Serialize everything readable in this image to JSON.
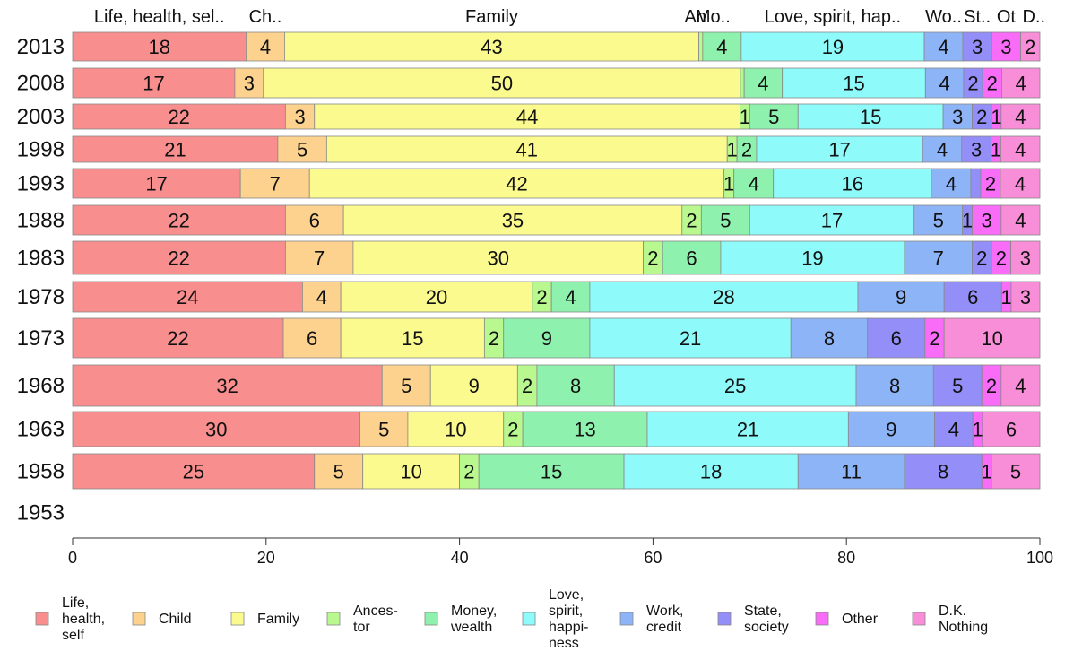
{
  "chart_data": {
    "type": "bar",
    "orientation": "horizontal",
    "stacked": true,
    "xlim": [
      0,
      100
    ],
    "x_ticks": [
      0,
      20,
      40,
      60,
      80,
      100
    ],
    "grid": false,
    "legend_position": "bottom",
    "top_labels": [
      "Life, health, sel..",
      "Ch..",
      "Family",
      "An",
      "Mo..",
      "Love, spirit, hap..",
      "Wo..",
      "St..",
      "Ot",
      "D.."
    ],
    "series": [
      {
        "name": "Life, health, self",
        "legend_lines": [
          "Life,",
          "health,",
          "self"
        ],
        "color": "#f88e8e"
      },
      {
        "name": "Child",
        "legend_lines": [
          "Child"
        ],
        "color": "#fcd28e"
      },
      {
        "name": "Family",
        "legend_lines": [
          "Family"
        ],
        "color": "#fafa8e"
      },
      {
        "name": "Ancestor",
        "legend_lines": [
          "Ances-",
          "tor"
        ],
        "color": "#b8f88e"
      },
      {
        "name": "Money, wealth",
        "legend_lines": [
          "Money,",
          "wealth"
        ],
        "color": "#8ef2ae"
      },
      {
        "name": "Love, spirit, happiness",
        "legend_lines": [
          "Love,",
          "spirit,",
          "happi-",
          "ness"
        ],
        "color": "#8efafa"
      },
      {
        "name": "Work, credit",
        "legend_lines": [
          "Work,",
          "credit"
        ],
        "color": "#8eb4f8"
      },
      {
        "name": "State, society",
        "legend_lines": [
          "State,",
          "society"
        ],
        "color": "#948ef8"
      },
      {
        "name": "Other",
        "legend_lines": [
          "Other"
        ],
        "color": "#f86cf8"
      },
      {
        "name": "D.K. Nothing",
        "legend_lines": [
          "D.K.",
          "Nothing"
        ],
        "color": "#f88ed8"
      }
    ],
    "rows": [
      {
        "year": "2013",
        "values": [
          18,
          4,
          43,
          0.4,
          4,
          19,
          4,
          3,
          3,
          2
        ],
        "labels": [
          "18",
          "4",
          "43",
          "",
          "4",
          "19",
          "4",
          "3",
          "3",
          "2"
        ]
      },
      {
        "year": "2008",
        "values": [
          17,
          3,
          50,
          0.4,
          4,
          15,
          4,
          2,
          2,
          4
        ],
        "labels": [
          "17",
          "3",
          "50",
          "",
          "4",
          "15",
          "4",
          "2",
          "2",
          "4"
        ]
      },
      {
        "year": "2003",
        "values": [
          22,
          3,
          44,
          1,
          5,
          15,
          3,
          2,
          1,
          4
        ],
        "labels": [
          "22",
          "3",
          "44",
          "1",
          "5",
          "15",
          "3",
          "2",
          "1",
          "4"
        ]
      },
      {
        "year": "1998",
        "values": [
          21,
          5,
          41,
          1,
          2,
          17,
          4,
          3,
          1,
          4
        ],
        "labels": [
          "21",
          "5",
          "41",
          "1",
          "2",
          "17",
          "4",
          "3",
          "1",
          "4"
        ]
      },
      {
        "year": "1993",
        "values": [
          17,
          7,
          42,
          1,
          4,
          16,
          4,
          1,
          2,
          4
        ],
        "labels": [
          "17",
          "7",
          "42",
          "1",
          "4",
          "16",
          "4",
          "",
          "2",
          "4"
        ]
      },
      {
        "year": "1988",
        "values": [
          22,
          6,
          35,
          2,
          5,
          17,
          5,
          1,
          3,
          4
        ],
        "labels": [
          "22",
          "6",
          "35",
          "2",
          "5",
          "17",
          "5",
          "1",
          "3",
          "4"
        ]
      },
      {
        "year": "1983",
        "values": [
          22,
          7,
          30,
          2,
          6,
          19,
          7,
          2,
          2,
          3
        ],
        "labels": [
          "22",
          "7",
          "30",
          "2",
          "6",
          "19",
          "7",
          "2",
          "2",
          "3"
        ]
      },
      {
        "year": "1978",
        "values": [
          24,
          4,
          20,
          2,
          4,
          28,
          9,
          6,
          1,
          3
        ],
        "labels": [
          "24",
          "4",
          "20",
          "2",
          "4",
          "28",
          "9",
          "6",
          "1",
          "3"
        ]
      },
      {
        "year": "1973",
        "values": [
          22,
          6,
          15,
          2,
          9,
          21,
          8,
          6,
          2,
          10
        ],
        "labels": [
          "22",
          "6",
          "15",
          "2",
          "9",
          "21",
          "8",
          "6",
          "2",
          "10"
        ]
      },
      {
        "year": "1968",
        "values": [
          32,
          5,
          9,
          2,
          8,
          25,
          8,
          5,
          2,
          4
        ],
        "labels": [
          "32",
          "5",
          "9",
          "2",
          "8",
          "25",
          "8",
          "5",
          "2",
          "4"
        ]
      },
      {
        "year": "1963",
        "values": [
          30,
          5,
          10,
          2,
          13,
          21,
          9,
          4,
          1,
          6
        ],
        "labels": [
          "30",
          "5",
          "10",
          "2",
          "13",
          "21",
          "9",
          "4",
          "1",
          "6"
        ]
      },
      {
        "year": "1958",
        "values": [
          25,
          5,
          10,
          2,
          15,
          18,
          11,
          8,
          1,
          5
        ],
        "labels": [
          "25",
          "5",
          "10",
          "2",
          "15",
          "18",
          "11",
          "8",
          "1",
          "5"
        ]
      },
      {
        "year": "1953",
        "values": [],
        "labels": []
      }
    ]
  }
}
